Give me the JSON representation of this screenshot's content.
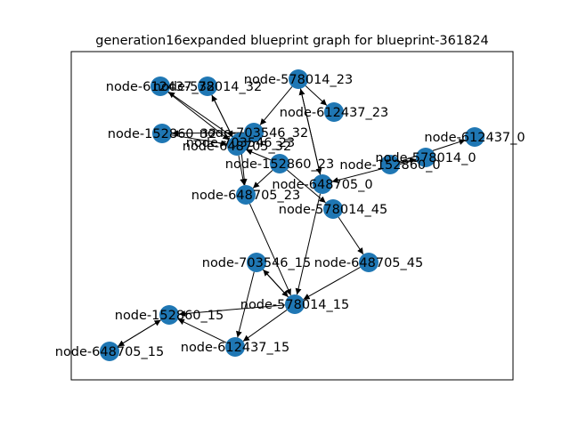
{
  "title": "generation16expanded blueprint graph for blueprint-361824",
  "colors": {
    "node": "#1f77b4",
    "edge": "#000000",
    "background": "#ffffff"
  },
  "graph": {
    "nodes": [
      {
        "id": "n0",
        "label": "node-612437_32"
      },
      {
        "id": "n1",
        "label": "node-578014_32"
      },
      {
        "id": "n2",
        "label": "node-703546_32"
      },
      {
        "id": "n3",
        "label": "node-578014_23"
      },
      {
        "id": "n4",
        "label": "node-612437_23"
      },
      {
        "id": "n5",
        "label": "node-152860_32"
      },
      {
        "id": "n6",
        "label": "node-703546_23"
      },
      {
        "id": "n7",
        "label": "node-648705_32"
      },
      {
        "id": "n8",
        "label": "node-612437_0"
      },
      {
        "id": "n9",
        "label": "node-578014_0"
      },
      {
        "id": "n10",
        "label": "node-152860_23"
      },
      {
        "id": "n11",
        "label": "node-152860_0"
      },
      {
        "id": "n12",
        "label": "node-648705_0"
      },
      {
        "id": "n13",
        "label": "node-648705_23"
      },
      {
        "id": "n14",
        "label": "node-578014_45"
      },
      {
        "id": "n15",
        "label": "node-703546_15"
      },
      {
        "id": "n16",
        "label": "node-648705_45"
      },
      {
        "id": "n17",
        "label": "node-578014_15"
      },
      {
        "id": "n18",
        "label": "node-152860_15"
      },
      {
        "id": "n19",
        "label": "node-648705_15"
      },
      {
        "id": "n20",
        "label": "node-612437_15"
      }
    ],
    "edges": [
      {
        "source": "n0",
        "target": "n7"
      },
      {
        "source": "n1",
        "target": "n7"
      },
      {
        "source": "n2",
        "target": "n7"
      },
      {
        "source": "n2",
        "target": "n6"
      },
      {
        "source": "n3",
        "target": "n4"
      },
      {
        "source": "n3",
        "target": "n2"
      },
      {
        "source": "n3",
        "target": "n12"
      },
      {
        "source": "n2",
        "target": "n5"
      },
      {
        "source": "n5",
        "target": "n7"
      },
      {
        "source": "n6",
        "target": "n0"
      },
      {
        "source": "n6",
        "target": "n13"
      },
      {
        "source": "n7",
        "target": "n13"
      },
      {
        "source": "n7",
        "target": "n1"
      },
      {
        "source": "n10",
        "target": "n7"
      },
      {
        "source": "n10",
        "target": "n13"
      },
      {
        "source": "n11",
        "target": "n8"
      },
      {
        "source": "n11",
        "target": "n9"
      },
      {
        "source": "n9",
        "target": "n12"
      },
      {
        "source": "n10",
        "target": "n14"
      },
      {
        "source": "n12",
        "target": "n3"
      },
      {
        "source": "n12",
        "target": "n17"
      },
      {
        "source": "n13",
        "target": "n17"
      },
      {
        "source": "n14",
        "target": "n16"
      },
      {
        "source": "n16",
        "target": "n17"
      },
      {
        "source": "n15",
        "target": "n17"
      },
      {
        "source": "n15",
        "target": "n20"
      },
      {
        "source": "n17",
        "target": "n18"
      },
      {
        "source": "n18",
        "target": "n19"
      },
      {
        "source": "n19",
        "target": "n18"
      },
      {
        "source": "n20",
        "target": "n18"
      },
      {
        "source": "n17",
        "target": "n15"
      },
      {
        "source": "n17",
        "target": "n20"
      }
    ]
  }
}
